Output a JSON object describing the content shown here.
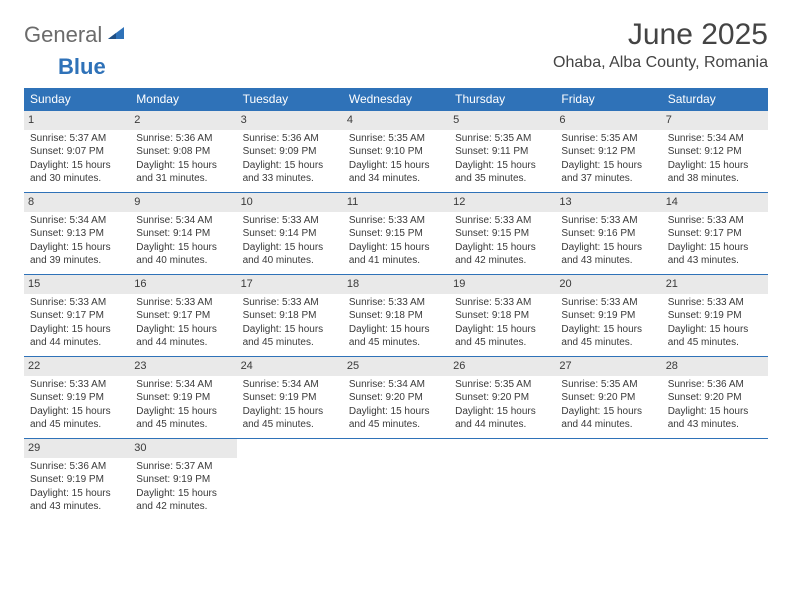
{
  "brand": {
    "general": "General",
    "blue": "Blue"
  },
  "title": "June 2025",
  "location": "Ohaba, Alba County, Romania",
  "colors": {
    "header_bg": "#2f72b8",
    "header_text": "#ffffff",
    "shade_bg": "#e9e9e9",
    "rule": "#2f72b8",
    "text": "#3a3a3a",
    "logo_gray": "#6b6b6b",
    "logo_blue": "#2f72b8",
    "page_bg": "#ffffff"
  },
  "day_headers": [
    "Sunday",
    "Monday",
    "Tuesday",
    "Wednesday",
    "Thursday",
    "Friday",
    "Saturday"
  ],
  "weeks": [
    [
      {
        "n": "1",
        "sr": "Sunrise: 5:37 AM",
        "ss": "Sunset: 9:07 PM",
        "d1": "Daylight: 15 hours",
        "d2": "and 30 minutes."
      },
      {
        "n": "2",
        "sr": "Sunrise: 5:36 AM",
        "ss": "Sunset: 9:08 PM",
        "d1": "Daylight: 15 hours",
        "d2": "and 31 minutes."
      },
      {
        "n": "3",
        "sr": "Sunrise: 5:36 AM",
        "ss": "Sunset: 9:09 PM",
        "d1": "Daylight: 15 hours",
        "d2": "and 33 minutes."
      },
      {
        "n": "4",
        "sr": "Sunrise: 5:35 AM",
        "ss": "Sunset: 9:10 PM",
        "d1": "Daylight: 15 hours",
        "d2": "and 34 minutes."
      },
      {
        "n": "5",
        "sr": "Sunrise: 5:35 AM",
        "ss": "Sunset: 9:11 PM",
        "d1": "Daylight: 15 hours",
        "d2": "and 35 minutes."
      },
      {
        "n": "6",
        "sr": "Sunrise: 5:35 AM",
        "ss": "Sunset: 9:12 PM",
        "d1": "Daylight: 15 hours",
        "d2": "and 37 minutes."
      },
      {
        "n": "7",
        "sr": "Sunrise: 5:34 AM",
        "ss": "Sunset: 9:12 PM",
        "d1": "Daylight: 15 hours",
        "d2": "and 38 minutes."
      }
    ],
    [
      {
        "n": "8",
        "sr": "Sunrise: 5:34 AM",
        "ss": "Sunset: 9:13 PM",
        "d1": "Daylight: 15 hours",
        "d2": "and 39 minutes."
      },
      {
        "n": "9",
        "sr": "Sunrise: 5:34 AM",
        "ss": "Sunset: 9:14 PM",
        "d1": "Daylight: 15 hours",
        "d2": "and 40 minutes."
      },
      {
        "n": "10",
        "sr": "Sunrise: 5:33 AM",
        "ss": "Sunset: 9:14 PM",
        "d1": "Daylight: 15 hours",
        "d2": "and 40 minutes."
      },
      {
        "n": "11",
        "sr": "Sunrise: 5:33 AM",
        "ss": "Sunset: 9:15 PM",
        "d1": "Daylight: 15 hours",
        "d2": "and 41 minutes."
      },
      {
        "n": "12",
        "sr": "Sunrise: 5:33 AM",
        "ss": "Sunset: 9:15 PM",
        "d1": "Daylight: 15 hours",
        "d2": "and 42 minutes."
      },
      {
        "n": "13",
        "sr": "Sunrise: 5:33 AM",
        "ss": "Sunset: 9:16 PM",
        "d1": "Daylight: 15 hours",
        "d2": "and 43 minutes."
      },
      {
        "n": "14",
        "sr": "Sunrise: 5:33 AM",
        "ss": "Sunset: 9:17 PM",
        "d1": "Daylight: 15 hours",
        "d2": "and 43 minutes."
      }
    ],
    [
      {
        "n": "15",
        "sr": "Sunrise: 5:33 AM",
        "ss": "Sunset: 9:17 PM",
        "d1": "Daylight: 15 hours",
        "d2": "and 44 minutes."
      },
      {
        "n": "16",
        "sr": "Sunrise: 5:33 AM",
        "ss": "Sunset: 9:17 PM",
        "d1": "Daylight: 15 hours",
        "d2": "and 44 minutes."
      },
      {
        "n": "17",
        "sr": "Sunrise: 5:33 AM",
        "ss": "Sunset: 9:18 PM",
        "d1": "Daylight: 15 hours",
        "d2": "and 45 minutes."
      },
      {
        "n": "18",
        "sr": "Sunrise: 5:33 AM",
        "ss": "Sunset: 9:18 PM",
        "d1": "Daylight: 15 hours",
        "d2": "and 45 minutes."
      },
      {
        "n": "19",
        "sr": "Sunrise: 5:33 AM",
        "ss": "Sunset: 9:18 PM",
        "d1": "Daylight: 15 hours",
        "d2": "and 45 minutes."
      },
      {
        "n": "20",
        "sr": "Sunrise: 5:33 AM",
        "ss": "Sunset: 9:19 PM",
        "d1": "Daylight: 15 hours",
        "d2": "and 45 minutes."
      },
      {
        "n": "21",
        "sr": "Sunrise: 5:33 AM",
        "ss": "Sunset: 9:19 PM",
        "d1": "Daylight: 15 hours",
        "d2": "and 45 minutes."
      }
    ],
    [
      {
        "n": "22",
        "sr": "Sunrise: 5:33 AM",
        "ss": "Sunset: 9:19 PM",
        "d1": "Daylight: 15 hours",
        "d2": "and 45 minutes."
      },
      {
        "n": "23",
        "sr": "Sunrise: 5:34 AM",
        "ss": "Sunset: 9:19 PM",
        "d1": "Daylight: 15 hours",
        "d2": "and 45 minutes."
      },
      {
        "n": "24",
        "sr": "Sunrise: 5:34 AM",
        "ss": "Sunset: 9:19 PM",
        "d1": "Daylight: 15 hours",
        "d2": "and 45 minutes."
      },
      {
        "n": "25",
        "sr": "Sunrise: 5:34 AM",
        "ss": "Sunset: 9:20 PM",
        "d1": "Daylight: 15 hours",
        "d2": "and 45 minutes."
      },
      {
        "n": "26",
        "sr": "Sunrise: 5:35 AM",
        "ss": "Sunset: 9:20 PM",
        "d1": "Daylight: 15 hours",
        "d2": "and 44 minutes."
      },
      {
        "n": "27",
        "sr": "Sunrise: 5:35 AM",
        "ss": "Sunset: 9:20 PM",
        "d1": "Daylight: 15 hours",
        "d2": "and 44 minutes."
      },
      {
        "n": "28",
        "sr": "Sunrise: 5:36 AM",
        "ss": "Sunset: 9:20 PM",
        "d1": "Daylight: 15 hours",
        "d2": "and 43 minutes."
      }
    ],
    [
      {
        "n": "29",
        "sr": "Sunrise: 5:36 AM",
        "ss": "Sunset: 9:19 PM",
        "d1": "Daylight: 15 hours",
        "d2": "and 43 minutes."
      },
      {
        "n": "30",
        "sr": "Sunrise: 5:37 AM",
        "ss": "Sunset: 9:19 PM",
        "d1": "Daylight: 15 hours",
        "d2": "and 42 minutes."
      },
      null,
      null,
      null,
      null,
      null
    ]
  ]
}
